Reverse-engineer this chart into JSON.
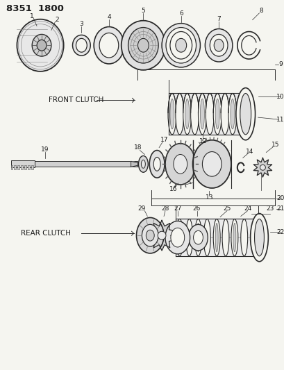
{
  "title": "8351  1800",
  "bg_color": "#f5f5f0",
  "line_color": "#2a2a2a",
  "text_color": "#1a1a1a",
  "front_clutch_label": "FRONT CLUTCH",
  "rear_clutch_label": "REAR CLUTCH",
  "fig_width": 4.1,
  "fig_height": 5.33,
  "dpi": 100
}
